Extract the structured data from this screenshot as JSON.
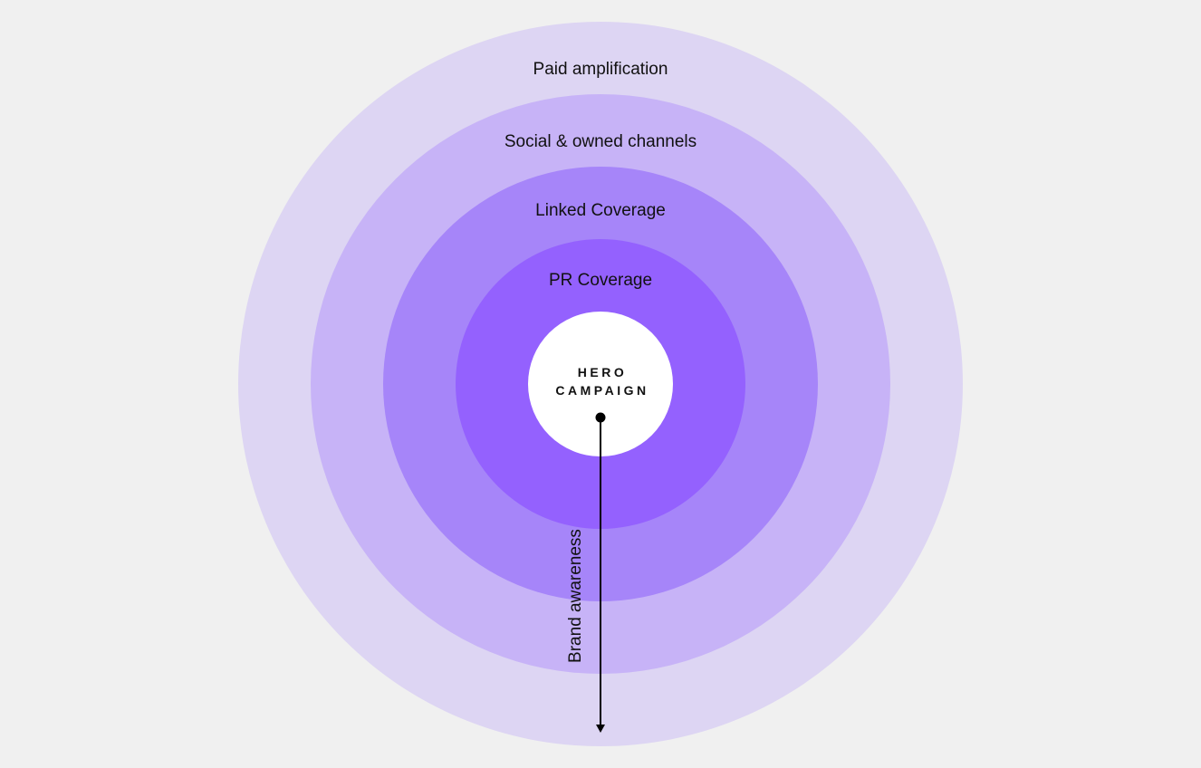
{
  "diagram": {
    "rings": [
      {
        "label": "Paid amplification",
        "color": "#ddd5f3"
      },
      {
        "label": "Social & owned channels",
        "color": "#c7b3f7"
      },
      {
        "label": "Linked Coverage",
        "color": "#a685f9"
      },
      {
        "label": "PR Coverage",
        "color": "#9461fe"
      }
    ],
    "center": {
      "line1": "HERO",
      "line2": "CAMPAIGN",
      "color": "#ffffff"
    },
    "axis_label": "Brand awareness"
  }
}
